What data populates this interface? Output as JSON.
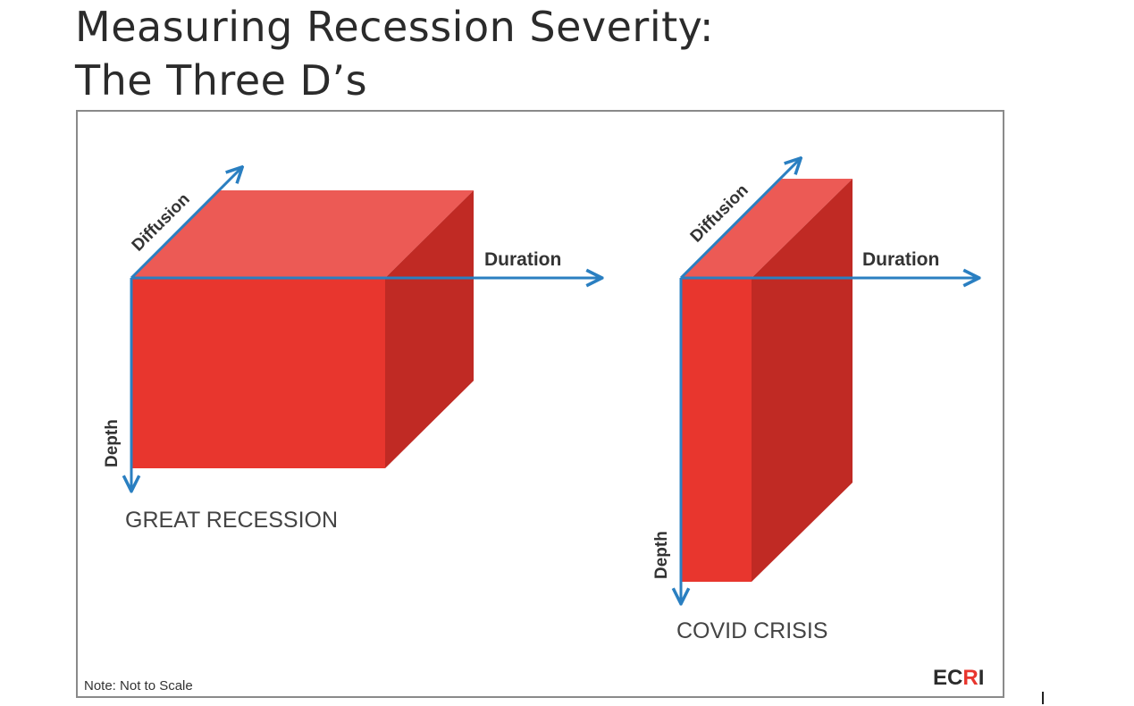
{
  "title": {
    "line1": "Measuring Recession Severity:",
    "line2": "The Three D’s"
  },
  "diagram": {
    "axis_labels": {
      "diffusion": "Diffusion",
      "duration": "Duration",
      "depth": "Depth"
    },
    "shapes": [
      {
        "name": "great-recession",
        "label": "GREAT RECESSION",
        "relative_size": "wide, shallow, long duration"
      },
      {
        "name": "covid-crisis",
        "label": "COVID CRISIS",
        "relative_size": "narrow, deep, short duration"
      }
    ],
    "note": "Note: Not to Scale",
    "brand": {
      "part1": "EC",
      "part2": "R",
      "part3": "I"
    },
    "colors": {
      "cube_front": "#e8362e",
      "cube_top": "#ec5a55",
      "cube_side": "#c02a24",
      "axis": "#2a7fc1",
      "label_text": "#333333",
      "brand_dark": "#2b2b2b",
      "brand_accent": "#e8362e"
    }
  }
}
